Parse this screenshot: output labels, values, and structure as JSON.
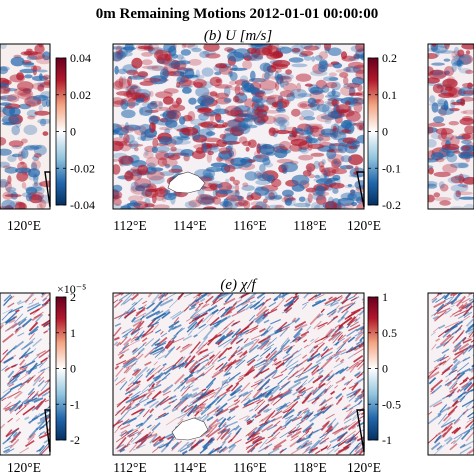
{
  "figure": {
    "title": "0m Remaining Motions  2012-01-01 00:00:00",
    "colors": {
      "positive": "#b2182b",
      "negative": "#2166ac",
      "mid": "#ffffff",
      "land": "#ffffff",
      "frame": "#000000"
    },
    "panels": [
      {
        "id": "left-top",
        "xticks": [
          "120°E"
        ],
        "colorbar": {
          "ticks": [
            "0.04",
            "0.02",
            "0",
            "-0.02",
            "-0.04"
          ],
          "exponent": ""
        }
      },
      {
        "id": "b",
        "label": "(b) U [m/s]",
        "xticks": [
          "112°E",
          "114°E",
          "116°E",
          "118°E",
          "120°E"
        ],
        "colorbar": {
          "ticks": [
            "0.2",
            "0.1",
            "0",
            "-0.1",
            "-0.2"
          ],
          "exponent": ""
        }
      },
      {
        "id": "left-bottom",
        "xticks": [
          "120°E"
        ],
        "colorbar": {
          "ticks": [
            "2",
            "1",
            "0",
            "-1",
            "-2"
          ],
          "exponent": "×10⁻⁵"
        }
      },
      {
        "id": "e",
        "label": "(e) χ/f",
        "xticks": [
          "112°E",
          "114°E",
          "116°E",
          "118°E",
          "120°E"
        ],
        "colorbar": {
          "ticks": [
            "1",
            "0.5",
            "0",
            "-0.5",
            "-1"
          ],
          "exponent": ""
        }
      }
    ]
  }
}
